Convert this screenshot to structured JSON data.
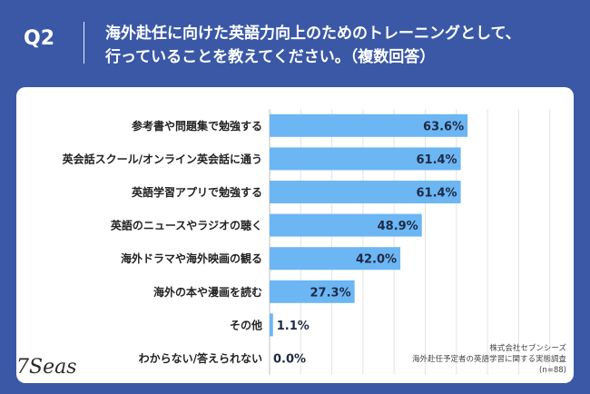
{
  "question": {
    "number": "Q2",
    "line1": "海外赴任に向けた英語力向上のためのトレーニングとして、",
    "line2": "行っていることを教えてください。（複数回答）"
  },
  "logo_text": "7Seas",
  "source": {
    "company": "株式会社セブンシーズ",
    "survey": "海外赴任予定者の英語学習に関する実態調査",
    "sample": "(n=88)"
  },
  "colors": {
    "bar": "#6cb6f4",
    "background": "#3a58a6",
    "value_text": "#1f2a44"
  },
  "chart_data": {
    "type": "bar",
    "orientation": "horizontal",
    "categories": [
      "参考書や問題集で勉強する",
      "英会話スクール/オンライン英会話に通う",
      "英語学習アプリで勉強する",
      "英語のニュースやラジオの聴く",
      "海外ドラマや海外映画の観る",
      "海外の本や漫画を読む",
      "その他",
      "わからない/答えられない"
    ],
    "values": [
      63.6,
      61.4,
      61.4,
      48.9,
      42.0,
      27.3,
      1.1,
      0.0
    ],
    "value_labels": [
      "63.6%",
      "61.4%",
      "61.4%",
      "48.9%",
      "42.0%",
      "27.3%",
      "1.1%",
      "0.0%"
    ],
    "xlim": [
      0,
      100
    ],
    "grid": true
  }
}
